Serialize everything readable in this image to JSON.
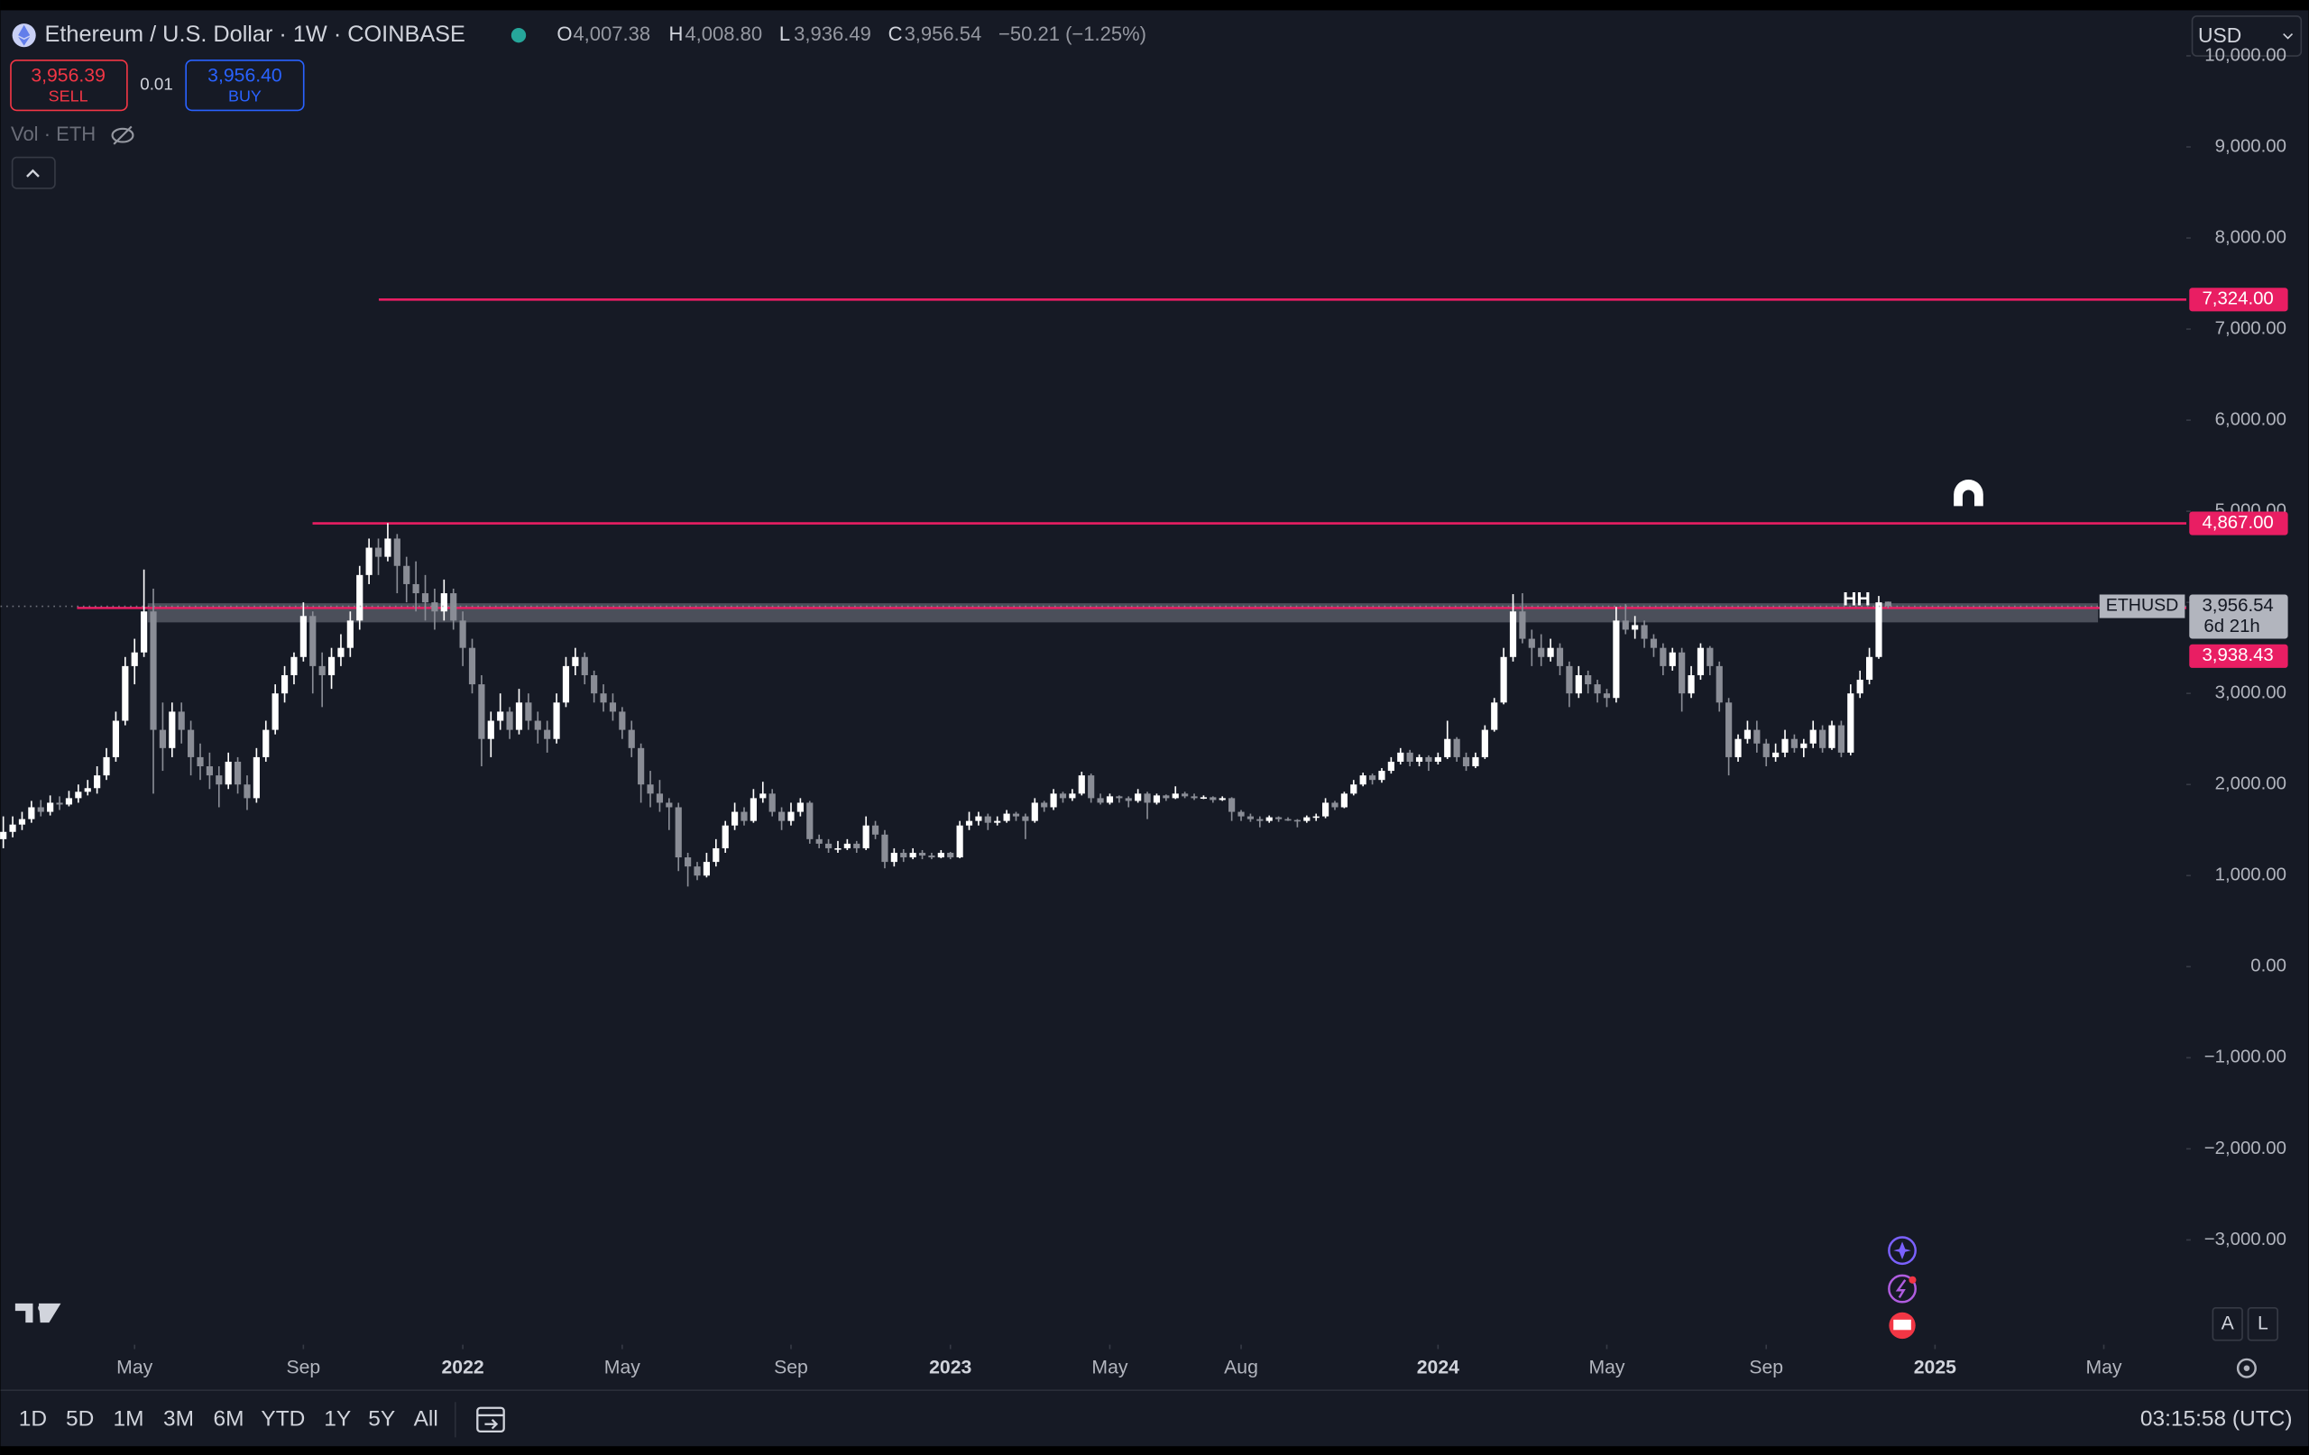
{
  "toolbar": {
    "title": "Ethereum / U.S. Dollar · 1W · COINBASE",
    "o_key": "O",
    "o": "4,007.38",
    "h_key": "H",
    "h": "4,008.80",
    "l_key": "L",
    "l": "3,936.49",
    "c_key": "C",
    "c": "3,956.54",
    "change": "−50.21 (−1.25%)",
    "currency": "USD"
  },
  "trade": {
    "sell_price": "3,956.39",
    "sell": "SELL",
    "spread": "0.01",
    "buy_price": "3,956.40",
    "buy": "BUY"
  },
  "indicator": "Vol · ETH",
  "timeframes": [
    "1D",
    "5D",
    "1M",
    "3M",
    "6M",
    "YTD",
    "1Y",
    "5Y",
    "All"
  ],
  "clock": "03:15:58 (UTC)",
  "scale_buttons": [
    "A",
    "L"
  ],
  "chart_data": {
    "type": "candlestick",
    "symbol": "ETHUSD",
    "countdown": "6d 21h",
    "last_label": "3,956.54",
    "annotation": "HH",
    "up_color": "#ffffff",
    "down_color": "#8a8d96",
    "candles": [
      [
        1400,
        1650,
        1300,
        1480
      ],
      [
        1480,
        1650,
        1420,
        1560
      ],
      [
        1560,
        1700,
        1500,
        1620
      ],
      [
        1620,
        1820,
        1580,
        1750
      ],
      [
        1750,
        1830,
        1650,
        1700
      ],
      [
        1700,
        1880,
        1660,
        1800
      ],
      [
        1800,
        1870,
        1720,
        1780
      ],
      [
        1780,
        1930,
        1760,
        1850
      ],
      [
        1850,
        2000,
        1800,
        1920
      ],
      [
        1920,
        2050,
        1880,
        1960
      ],
      [
        1960,
        2200,
        1900,
        2100
      ],
      [
        2100,
        2400,
        2050,
        2300
      ],
      [
        2300,
        2800,
        2250,
        2700
      ],
      [
        2700,
        3400,
        2650,
        3300
      ],
      [
        3300,
        3600,
        3100,
        3450
      ],
      [
        3450,
        4360,
        3400,
        3900
      ],
      [
        3900,
        4150,
        1900,
        2600
      ],
      [
        2600,
        2900,
        2150,
        2400
      ],
      [
        2400,
        2900,
        2300,
        2800
      ],
      [
        2800,
        2900,
        2450,
        2600
      ],
      [
        2600,
        2700,
        2100,
        2300
      ],
      [
        2300,
        2450,
        2050,
        2200
      ],
      [
        2200,
        2350,
        1950,
        2100
      ],
      [
        2100,
        2200,
        1750,
        2000
      ],
      [
        2000,
        2350,
        1950,
        2250
      ],
      [
        2250,
        2300,
        1900,
        2000
      ],
      [
        2000,
        2100,
        1720,
        1850
      ],
      [
        1850,
        2400,
        1800,
        2300
      ],
      [
        2300,
        2700,
        2250,
        2600
      ],
      [
        2600,
        3100,
        2550,
        3000
      ],
      [
        3000,
        3300,
        2900,
        3200
      ],
      [
        3200,
        3450,
        3100,
        3400
      ],
      [
        3400,
        4000,
        3350,
        3850
      ],
      [
        3850,
        3900,
        3000,
        3300
      ],
      [
        3300,
        3450,
        2850,
        3200
      ],
      [
        3200,
        3500,
        3050,
        3400
      ],
      [
        3400,
        3650,
        3300,
        3500
      ],
      [
        3500,
        3900,
        3400,
        3800
      ],
      [
        3800,
        4400,
        3700,
        4300
      ],
      [
        4300,
        4700,
        4200,
        4600
      ],
      [
        4600,
        4700,
        4300,
        4500
      ],
      [
        4500,
        4870,
        4450,
        4700
      ],
      [
        4700,
        4750,
        4100,
        4400
      ],
      [
        4400,
        4500,
        4000,
        4200
      ],
      [
        4200,
        4450,
        3900,
        4100
      ],
      [
        4100,
        4300,
        3800,
        4000
      ],
      [
        4000,
        4150,
        3700,
        3900
      ],
      [
        3900,
        4250,
        3800,
        4100
      ],
      [
        4100,
        4150,
        3700,
        3800
      ],
      [
        3800,
        3900,
        3300,
        3500
      ],
      [
        3500,
        3600,
        3000,
        3100
      ],
      [
        3100,
        3200,
        2200,
        2500
      ],
      [
        2500,
        2800,
        2300,
        2700
      ],
      [
        2700,
        3000,
        2600,
        2800
      ],
      [
        2800,
        2850,
        2500,
        2600
      ],
      [
        2600,
        3050,
        2550,
        2900
      ],
      [
        2900,
        3000,
        2600,
        2700
      ],
      [
        2700,
        2800,
        2450,
        2600
      ],
      [
        2600,
        2700,
        2350,
        2500
      ],
      [
        2500,
        3000,
        2450,
        2900
      ],
      [
        2900,
        3400,
        2850,
        3300
      ],
      [
        3300,
        3500,
        3200,
        3400
      ],
      [
        3400,
        3450,
        3100,
        3200
      ],
      [
        3200,
        3250,
        2900,
        3000
      ],
      [
        3000,
        3100,
        2800,
        2900
      ],
      [
        2900,
        3000,
        2700,
        2800
      ],
      [
        2800,
        2850,
        2500,
        2600
      ],
      [
        2600,
        2700,
        2300,
        2400
      ],
      [
        2400,
        2450,
        1800,
        2000
      ],
      [
        2000,
        2150,
        1750,
        1900
      ],
      [
        1900,
        2050,
        1700,
        1800
      ],
      [
        1800,
        1850,
        1500,
        1750
      ],
      [
        1750,
        1800,
        1050,
        1200
      ],
      [
        1200,
        1250,
        880,
        1100
      ],
      [
        1100,
        1150,
        950,
        1000
      ],
      [
        1000,
        1250,
        980,
        1150
      ],
      [
        1150,
        1400,
        1100,
        1300
      ],
      [
        1300,
        1600,
        1250,
        1550
      ],
      [
        1550,
        1800,
        1500,
        1700
      ],
      [
        1700,
        1750,
        1550,
        1600
      ],
      [
        1600,
        1950,
        1580,
        1850
      ],
      [
        1850,
        2030,
        1800,
        1900
      ],
      [
        1900,
        1950,
        1650,
        1700
      ],
      [
        1700,
        1750,
        1500,
        1600
      ],
      [
        1600,
        1800,
        1550,
        1700
      ],
      [
        1700,
        1850,
        1650,
        1800
      ],
      [
        1800,
        1820,
        1350,
        1400
      ],
      [
        1400,
        1450,
        1300,
        1350
      ],
      [
        1350,
        1400,
        1250,
        1300
      ],
      [
        1300,
        1380,
        1250,
        1300
      ],
      [
        1300,
        1400,
        1280,
        1350
      ],
      [
        1350,
        1380,
        1250,
        1300
      ],
      [
        1300,
        1650,
        1280,
        1550
      ],
      [
        1550,
        1600,
        1400,
        1450
      ],
      [
        1450,
        1500,
        1080,
        1150
      ],
      [
        1150,
        1300,
        1100,
        1250
      ],
      [
        1250,
        1290,
        1150,
        1200
      ],
      [
        1200,
        1300,
        1180,
        1250
      ],
      [
        1250,
        1280,
        1180,
        1220
      ],
      [
        1220,
        1250,
        1180,
        1200
      ],
      [
        1200,
        1280,
        1190,
        1250
      ],
      [
        1250,
        1260,
        1180,
        1200
      ],
      [
        1200,
        1600,
        1190,
        1550
      ],
      [
        1550,
        1700,
        1500,
        1600
      ],
      [
        1600,
        1700,
        1550,
        1650
      ],
      [
        1650,
        1680,
        1500,
        1580
      ],
      [
        1580,
        1650,
        1550,
        1600
      ],
      [
        1600,
        1720,
        1580,
        1680
      ],
      [
        1680,
        1700,
        1600,
        1650
      ],
      [
        1650,
        1680,
        1400,
        1600
      ],
      [
        1600,
        1850,
        1580,
        1800
      ],
      [
        1800,
        1820,
        1700,
        1750
      ],
      [
        1750,
        1950,
        1720,
        1900
      ],
      [
        1900,
        1920,
        1800,
        1850
      ],
      [
        1850,
        1950,
        1820,
        1900
      ],
      [
        1900,
        2140,
        1880,
        2100
      ],
      [
        2100,
        2120,
        1800,
        1850
      ],
      [
        1850,
        1900,
        1780,
        1800
      ],
      [
        1800,
        1900,
        1780,
        1870
      ],
      [
        1870,
        1880,
        1800,
        1850
      ],
      [
        1850,
        1870,
        1750,
        1820
      ],
      [
        1820,
        1950,
        1800,
        1900
      ],
      [
        1900,
        1920,
        1620,
        1800
      ],
      [
        1800,
        1900,
        1780,
        1880
      ],
      [
        1880,
        1890,
        1820,
        1850
      ],
      [
        1850,
        1980,
        1840,
        1900
      ],
      [
        1900,
        1920,
        1850,
        1870
      ],
      [
        1870,
        1900,
        1830,
        1850
      ],
      [
        1850,
        1880,
        1840,
        1860
      ],
      [
        1860,
        1870,
        1800,
        1830
      ],
      [
        1830,
        1870,
        1820,
        1850
      ],
      [
        1850,
        1860,
        1600,
        1700
      ],
      [
        1700,
        1720,
        1600,
        1650
      ],
      [
        1650,
        1680,
        1590,
        1620
      ],
      [
        1620,
        1650,
        1530,
        1600
      ],
      [
        1600,
        1660,
        1580,
        1640
      ],
      [
        1640,
        1650,
        1590,
        1620
      ],
      [
        1620,
        1640,
        1600,
        1610
      ],
      [
        1610,
        1620,
        1530,
        1600
      ],
      [
        1600,
        1660,
        1580,
        1640
      ],
      [
        1640,
        1680,
        1600,
        1650
      ],
      [
        1650,
        1850,
        1630,
        1800
      ],
      [
        1800,
        1820,
        1720,
        1750
      ],
      [
        1750,
        1920,
        1740,
        1900
      ],
      [
        1900,
        2050,
        1880,
        2000
      ],
      [
        2000,
        2130,
        1980,
        2100
      ],
      [
        2100,
        2120,
        2000,
        2050
      ],
      [
        2050,
        2180,
        2020,
        2150
      ],
      [
        2150,
        2300,
        2120,
        2250
      ],
      [
        2250,
        2400,
        2220,
        2350
      ],
      [
        2350,
        2380,
        2200,
        2250
      ],
      [
        2250,
        2330,
        2200,
        2300
      ],
      [
        2300,
        2320,
        2150,
        2250
      ],
      [
        2250,
        2350,
        2220,
        2300
      ],
      [
        2300,
        2700,
        2280,
        2500
      ],
      [
        2500,
        2520,
        2250,
        2300
      ],
      [
        2300,
        2350,
        2150,
        2200
      ],
      [
        2200,
        2350,
        2180,
        2300
      ],
      [
        2300,
        2650,
        2280,
        2600
      ],
      [
        2600,
        2950,
        2580,
        2900
      ],
      [
        2900,
        3500,
        2880,
        3400
      ],
      [
        3400,
        4090,
        3350,
        3900
      ],
      [
        3900,
        4100,
        3550,
        3600
      ],
      [
        3600,
        3700,
        3300,
        3500
      ],
      [
        3500,
        3650,
        3300,
        3400
      ],
      [
        3400,
        3600,
        3350,
        3500
      ],
      [
        3500,
        3550,
        3200,
        3300
      ],
      [
        3300,
        3350,
        2850,
        3000
      ],
      [
        3000,
        3300,
        2950,
        3200
      ],
      [
        3200,
        3250,
        3000,
        3100
      ],
      [
        3100,
        3150,
        2900,
        3000
      ],
      [
        3000,
        3050,
        2850,
        2950
      ],
      [
        2950,
        3950,
        2900,
        3800
      ],
      [
        3800,
        3980,
        3650,
        3700
      ],
      [
        3700,
        3850,
        3600,
        3750
      ],
      [
        3750,
        3800,
        3500,
        3600
      ],
      [
        3600,
        3650,
        3400,
        3500
      ],
      [
        3500,
        3550,
        3200,
        3300
      ],
      [
        3300,
        3500,
        3250,
        3450
      ],
      [
        3450,
        3500,
        2800,
        3000
      ],
      [
        3000,
        3300,
        2950,
        3200
      ],
      [
        3200,
        3550,
        3150,
        3500
      ],
      [
        3500,
        3520,
        3200,
        3300
      ],
      [
        3300,
        3350,
        2800,
        2900
      ],
      [
        2900,
        2950,
        2100,
        2300
      ],
      [
        2300,
        2550,
        2250,
        2500
      ],
      [
        2500,
        2700,
        2450,
        2600
      ],
      [
        2600,
        2700,
        2350,
        2450
      ],
      [
        2450,
        2500,
        2200,
        2300
      ],
      [
        2300,
        2450,
        2250,
        2350
      ],
      [
        2350,
        2600,
        2300,
        2500
      ],
      [
        2500,
        2550,
        2350,
        2400
      ],
      [
        2400,
        2500,
        2300,
        2450
      ],
      [
        2450,
        2700,
        2400,
        2600
      ],
      [
        2600,
        2650,
        2350,
        2400
      ],
      [
        2400,
        2700,
        2380,
        2650
      ],
      [
        2650,
        2700,
        2300,
        2350
      ],
      [
        2350,
        3100,
        2320,
        3000
      ],
      [
        3000,
        3250,
        2950,
        3150
      ],
      [
        3150,
        3500,
        3100,
        3400
      ],
      [
        3400,
        4070,
        3380,
        4000
      ],
      [
        4007.38,
        4008.8,
        3936.49,
        3956.54
      ]
    ],
    "xlim": [
      -0.3,
      232.8
    ],
    "xticks": [
      {
        "value": 14,
        "label": "May"
      },
      {
        "value": 32,
        "label": "Sep"
      },
      {
        "value": 49,
        "label": "2022"
      },
      {
        "value": 66,
        "label": "May"
      },
      {
        "value": 84,
        "label": "Sep"
      },
      {
        "value": 101,
        "label": "2023"
      },
      {
        "value": 118,
        "label": "May"
      },
      {
        "value": 132,
        "label": "Aug"
      },
      {
        "value": 153,
        "label": "2024"
      },
      {
        "value": 171,
        "label": "May"
      },
      {
        "value": 188,
        "label": "Sep"
      },
      {
        "value": 206,
        "label": "2025"
      },
      {
        "value": 224,
        "label": "May"
      }
    ],
    "ylim": [
      -4150,
      10500
    ],
    "yticks": [
      {
        "value": 10000,
        "label": "10,000.00"
      },
      {
        "value": 9000,
        "label": "9,000.00"
      },
      {
        "value": 8000,
        "label": "8,000.00"
      },
      {
        "value": 7000,
        "label": "7,000.00"
      },
      {
        "value": 6000,
        "label": "6,000.00"
      },
      {
        "value": 5000,
        "label": "5,000.00"
      },
      {
        "value": 4000,
        "label": "4,000.00"
      },
      {
        "value": 3000,
        "label": "3,000.00"
      },
      {
        "value": 2000,
        "label": "2,000.00"
      },
      {
        "value": 1000,
        "label": "1,000.00"
      },
      {
        "value": 0,
        "label": "0.00"
      },
      {
        "value": -1000,
        "label": "−1,000.00"
      },
      {
        "value": -2000,
        "label": "−2,000.00"
      },
      {
        "value": -3000,
        "label": "−3,000.00"
      }
    ],
    "hlines": [
      {
        "value": 7324,
        "label": "7,324.00",
        "color": "#e91e63"
      },
      {
        "value": 4867,
        "label": "4,867.00",
        "color": "#e91e63"
      },
      {
        "value": 3938.43,
        "label": "3,938.43",
        "color": "#e91e63"
      }
    ],
    "zone": [
      3780,
      3990
    ]
  }
}
